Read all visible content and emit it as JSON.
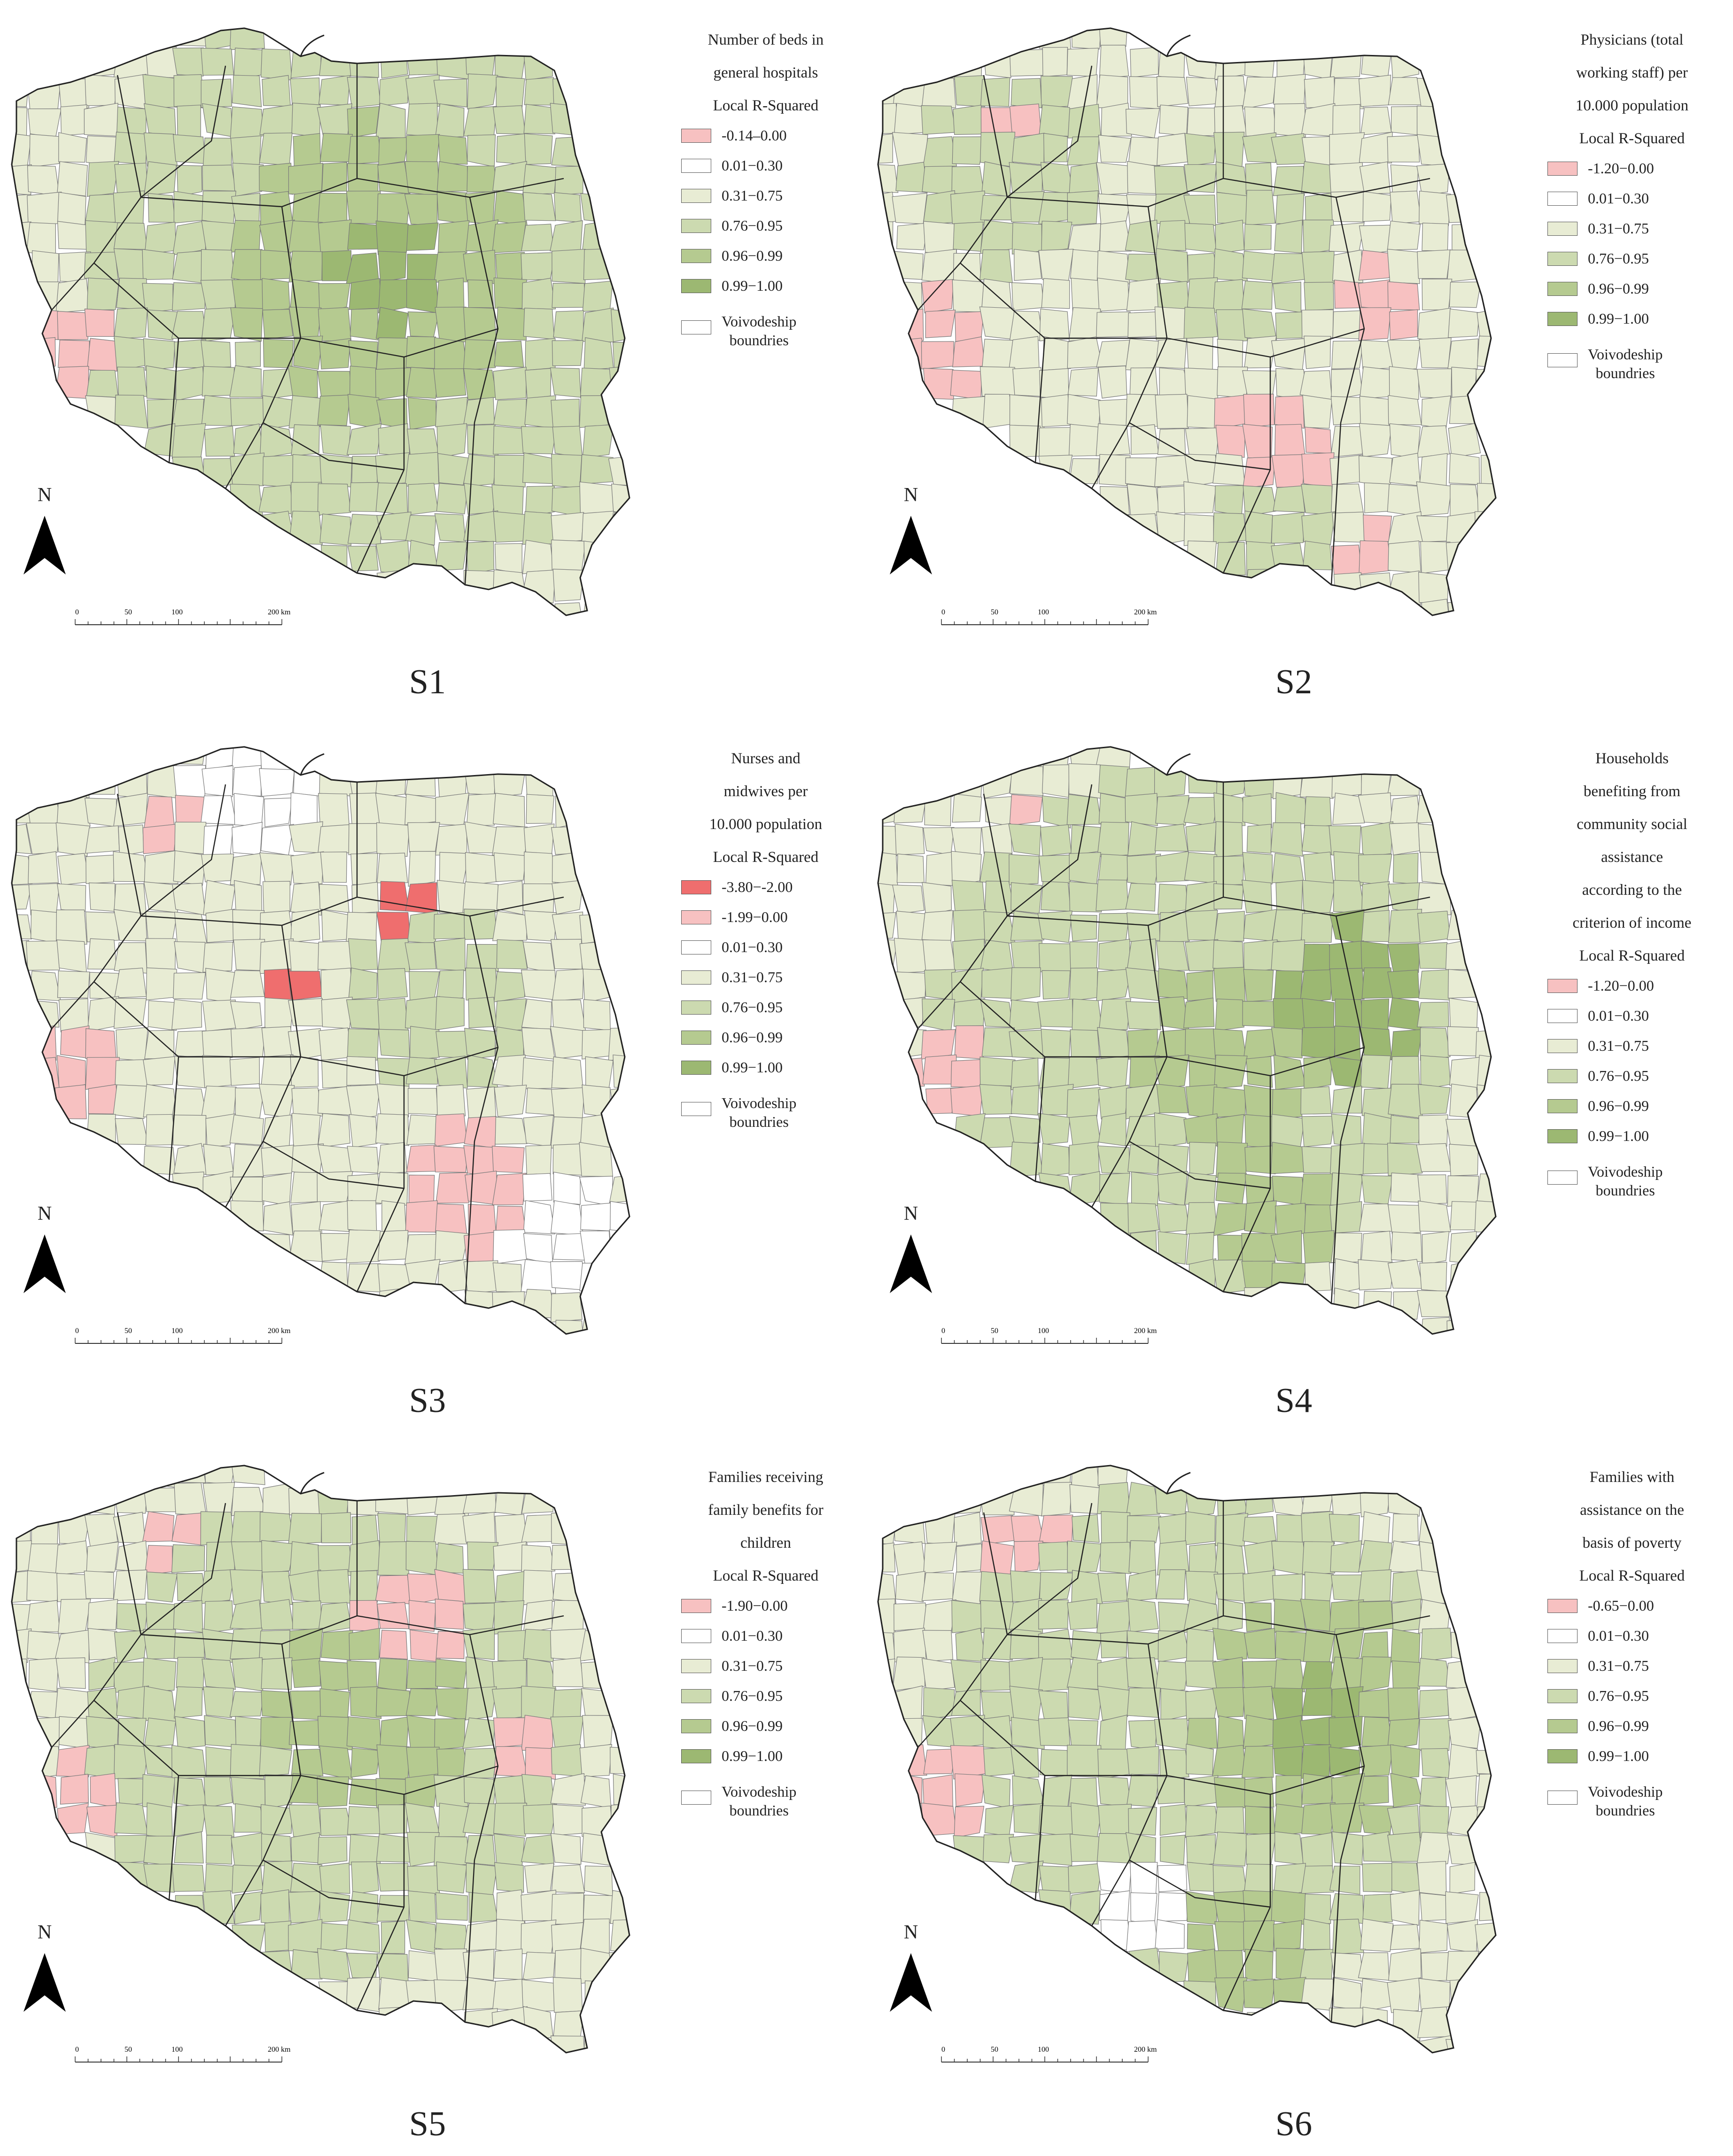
{
  "colors": {
    "neg_strong": "#ef6e6e",
    "neg": "#f7c1c1",
    "c0130": "#ffffff",
    "c3175": "#e8ecd4",
    "c7695": "#ccdab0",
    "c9699": "#b5ca90",
    "c99100": "#9cb872",
    "border": "#7a7a7a",
    "voiv_border": "#222222"
  },
  "north_letter": "N",
  "scale_labels": [
    "0",
    "50",
    "100",
    "200 km"
  ],
  "boundary_label": [
    "Voivodeship",
    "boundries"
  ],
  "panels": [
    {
      "id": "S1",
      "label": "S1",
      "legend_title": [
        "Number of beds in",
        "general hospitals",
        "Local R-Squared"
      ],
      "legend_items": [
        {
          "label": "-0.14‒0.00",
          "color": "#f7c1c1"
        },
        {
          "label": "0.01−0.30",
          "color": "#ffffff"
        },
        {
          "label": "0.31−0.75",
          "color": "#e8ecd4"
        },
        {
          "label": "0.76−0.95",
          "color": "#ccdab0"
        },
        {
          "label": "0.96−0.99",
          "color": "#b5ca90"
        },
        {
          "label": "0.99−1.00",
          "color": "#9cb872"
        }
      ]
    },
    {
      "id": "S2",
      "label": "S2",
      "legend_title": [
        "Physicians (total",
        "working staff) per",
        "10.000 population",
        "Local R-Squared"
      ],
      "legend_items": [
        {
          "label": "-1.20−0.00",
          "color": "#f7c1c1"
        },
        {
          "label": "0.01−0.30",
          "color": "#ffffff"
        },
        {
          "label": "0.31−0.75",
          "color": "#e8ecd4"
        },
        {
          "label": "0.76−0.95",
          "color": "#ccdab0"
        },
        {
          "label": "0.96−0.99",
          "color": "#b5ca90"
        },
        {
          "label": "0.99−1.00",
          "color": "#9cb872"
        }
      ]
    },
    {
      "id": "S3",
      "label": "S3",
      "legend_title": [
        "Nurses and",
        "midwives per",
        "10.000 population",
        "Local R-Squared"
      ],
      "legend_items": [
        {
          "label": "-3.80−-2.00",
          "color": "#ef6e6e"
        },
        {
          "label": "-1.99−0.00",
          "color": "#f7c1c1"
        },
        {
          "label": "0.01−0.30",
          "color": "#ffffff"
        },
        {
          "label": "0.31−0.75",
          "color": "#e8ecd4"
        },
        {
          "label": "0.76−0.95",
          "color": "#ccdab0"
        },
        {
          "label": "0.96−0.99",
          "color": "#b5ca90"
        },
        {
          "label": "0.99−1.00",
          "color": "#9cb872"
        }
      ]
    },
    {
      "id": "S4",
      "label": "S4",
      "legend_title": [
        "Households",
        "benefiting from",
        "community social",
        "assistance",
        "according to the",
        "criterion of income",
        "Local R-Squared"
      ],
      "legend_items": [
        {
          "label": "-1.20−0.00",
          "color": "#f7c1c1"
        },
        {
          "label": "0.01−0.30",
          "color": "#ffffff"
        },
        {
          "label": "0.31−0.75",
          "color": "#e8ecd4"
        },
        {
          "label": "0.76−0.95",
          "color": "#ccdab0"
        },
        {
          "label": "0.96−0.99",
          "color": "#b5ca90"
        },
        {
          "label": "0.99−1.00",
          "color": "#9cb872"
        }
      ]
    },
    {
      "id": "S5",
      "label": "S5",
      "legend_title": [
        "Families receiving",
        "family benefits for",
        "children",
        "Local R-Squared"
      ],
      "legend_items": [
        {
          "label": "-1.90−0.00",
          "color": "#f7c1c1"
        },
        {
          "label": "0.01−0.30",
          "color": "#ffffff"
        },
        {
          "label": "0.31−0.75",
          "color": "#e8ecd4"
        },
        {
          "label": "0.76−0.95",
          "color": "#ccdab0"
        },
        {
          "label": "0.96−0.99",
          "color": "#b5ca90"
        },
        {
          "label": "0.99−1.00",
          "color": "#9cb872"
        }
      ]
    },
    {
      "id": "S6",
      "label": "S6",
      "legend_title": [
        "Families with",
        "assistance on the",
        "basis of poverty",
        "Local R-Squared"
      ],
      "legend_items": [
        {
          "label": "-0.65−0.00",
          "color": "#f7c1c1"
        },
        {
          "label": "0.01−0.30",
          "color": "#ffffff"
        },
        {
          "label": "0.31−0.75",
          "color": "#e8ecd4"
        },
        {
          "label": "0.76−0.95",
          "color": "#ccdab0"
        },
        {
          "label": "0.96−0.99",
          "color": "#b5ca90"
        },
        {
          "label": "0.99−1.00",
          "color": "#9cb872"
        }
      ]
    }
  ]
}
